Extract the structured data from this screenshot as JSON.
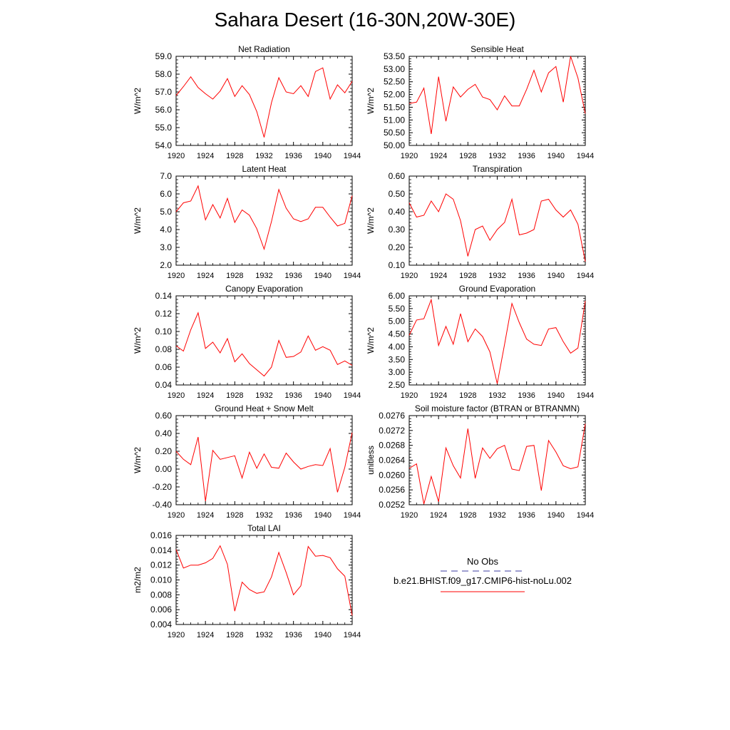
{
  "title": "Sahara Desert (16-30N,20W-30E)",
  "years": [
    1920,
    1921,
    1922,
    1923,
    1924,
    1925,
    1926,
    1927,
    1928,
    1929,
    1930,
    1931,
    1932,
    1933,
    1934,
    1935,
    1936,
    1937,
    1938,
    1939,
    1940,
    1941,
    1942,
    1943,
    1944
  ],
  "colors": {
    "series": "#ff0000",
    "obs": "#3c3ca0",
    "axis": "#000000"
  },
  "chart_data": [
    {
      "type": "line",
      "title": "Net Radiation",
      "ylabel": "W/m^2",
      "ylim": [
        54.0,
        59.0
      ],
      "yticks": [
        54.0,
        55.0,
        56.0,
        57.0,
        58.0,
        59.0
      ],
      "ytick_decimals": 1,
      "xlim": [
        1920,
        1944
      ],
      "xticks": [
        1920,
        1924,
        1928,
        1932,
        1936,
        1940,
        1944
      ],
      "series": [
        {
          "values": [
            56.8,
            57.3,
            57.85,
            57.25,
            56.9,
            56.6,
            57.05,
            57.75,
            56.75,
            57.35,
            56.85,
            55.9,
            54.45,
            56.4,
            57.8,
            57.0,
            56.9,
            57.35,
            56.75,
            58.15,
            58.35,
            56.6,
            57.4,
            56.95,
            57.6
          ]
        }
      ]
    },
    {
      "type": "line",
      "title": "Sensible Heat",
      "ylabel": "W/m^2",
      "ylim": [
        50.0,
        53.5
      ],
      "yticks": [
        50.0,
        50.5,
        51.0,
        51.5,
        52.0,
        52.5,
        53.0,
        53.5
      ],
      "ytick_decimals": 2,
      "xlim": [
        1920,
        1944
      ],
      "xticks": [
        1920,
        1924,
        1928,
        1932,
        1936,
        1940,
        1944
      ],
      "series": [
        {
          "values": [
            51.65,
            51.7,
            52.25,
            50.45,
            52.7,
            50.95,
            52.3,
            51.9,
            52.2,
            52.4,
            51.9,
            51.8,
            51.4,
            51.95,
            51.55,
            51.55,
            52.2,
            52.95,
            52.1,
            52.85,
            53.1,
            51.7,
            53.5,
            52.65,
            51.25
          ]
        }
      ]
    },
    {
      "type": "line",
      "title": "Latent Heat",
      "ylabel": "W/m^2",
      "ylim": [
        2.0,
        7.0
      ],
      "yticks": [
        2.0,
        3.0,
        4.0,
        5.0,
        6.0,
        7.0
      ],
      "ytick_decimals": 1,
      "xlim": [
        1920,
        1944
      ],
      "xticks": [
        1920,
        1924,
        1928,
        1932,
        1936,
        1940,
        1944
      ],
      "series": [
        {
          "values": [
            5.0,
            5.5,
            5.6,
            6.45,
            4.55,
            5.4,
            4.65,
            5.75,
            4.4,
            5.1,
            4.8,
            4.05,
            2.9,
            4.45,
            6.25,
            5.2,
            4.6,
            4.45,
            4.6,
            5.25,
            5.25,
            4.7,
            4.2,
            4.35,
            5.9
          ]
        }
      ]
    },
    {
      "type": "line",
      "title": "Transpiration",
      "ylabel": "W/m^2",
      "ylim": [
        0.1,
        0.6
      ],
      "yticks": [
        0.1,
        0.2,
        0.3,
        0.4,
        0.5,
        0.6
      ],
      "ytick_decimals": 2,
      "xlim": [
        1920,
        1944
      ],
      "xticks": [
        1920,
        1924,
        1928,
        1932,
        1936,
        1940,
        1944
      ],
      "series": [
        {
          "values": [
            0.45,
            0.37,
            0.38,
            0.46,
            0.4,
            0.5,
            0.47,
            0.35,
            0.15,
            0.3,
            0.32,
            0.24,
            0.3,
            0.34,
            0.47,
            0.27,
            0.28,
            0.3,
            0.46,
            0.47,
            0.41,
            0.37,
            0.41,
            0.33,
            0.12
          ]
        }
      ]
    },
    {
      "type": "line",
      "title": "Canopy Evaporation",
      "ylabel": "W/m^2",
      "ylim": [
        0.04,
        0.14
      ],
      "yticks": [
        0.04,
        0.06,
        0.08,
        0.1,
        0.12,
        0.14
      ],
      "ytick_decimals": 2,
      "xlim": [
        1920,
        1944
      ],
      "xticks": [
        1920,
        1924,
        1928,
        1932,
        1936,
        1940,
        1944
      ],
      "series": [
        {
          "values": [
            0.084,
            0.078,
            0.102,
            0.121,
            0.081,
            0.088,
            0.076,
            0.092,
            0.066,
            0.075,
            0.064,
            0.057,
            0.05,
            0.06,
            0.09,
            0.071,
            0.072,
            0.077,
            0.095,
            0.079,
            0.083,
            0.079,
            0.063,
            0.067,
            0.062
          ]
        }
      ]
    },
    {
      "type": "line",
      "title": "Ground Evaporation",
      "ylabel": "W/m^2",
      "ylim": [
        2.5,
        6.0
      ],
      "yticks": [
        2.5,
        3.0,
        3.5,
        4.0,
        4.5,
        5.0,
        5.5,
        6.0
      ],
      "ytick_decimals": 2,
      "xlim": [
        1920,
        1944
      ],
      "xticks": [
        1920,
        1924,
        1928,
        1932,
        1936,
        1940,
        1944
      ],
      "series": [
        {
          "values": [
            4.45,
            5.05,
            5.1,
            5.85,
            4.05,
            4.8,
            4.1,
            5.3,
            4.2,
            4.7,
            4.4,
            3.8,
            2.55,
            4.1,
            5.7,
            4.95,
            4.3,
            4.1,
            4.05,
            4.7,
            4.75,
            4.2,
            3.75,
            3.95,
            5.8
          ]
        }
      ]
    },
    {
      "type": "line",
      "title": "Ground Heat + Snow Melt",
      "ylabel": "W/m^2",
      "ylim": [
        -0.4,
        0.6
      ],
      "yticks": [
        -0.4,
        -0.2,
        0.0,
        0.2,
        0.4,
        0.6
      ],
      "ytick_decimals": 2,
      "xlim": [
        1920,
        1944
      ],
      "xticks": [
        1920,
        1924,
        1928,
        1932,
        1936,
        1940,
        1944
      ],
      "series": [
        {
          "values": [
            0.2,
            0.11,
            0.05,
            0.36,
            -0.36,
            0.21,
            0.11,
            0.13,
            0.15,
            -0.1,
            0.19,
            0.01,
            0.17,
            0.02,
            0.01,
            0.18,
            0.08,
            0.0,
            0.03,
            0.05,
            0.04,
            0.23,
            -0.26,
            0.02,
            0.41
          ]
        }
      ]
    },
    {
      "type": "line",
      "title": "Soil moisture factor (BTRAN or BTRANMN)",
      "ylabel": "unitless",
      "ylim": [
        0.0252,
        0.0276
      ],
      "yticks": [
        0.0252,
        0.0256,
        0.026,
        0.0264,
        0.0268,
        0.0272,
        0.0276
      ],
      "ytick_decimals": 4,
      "xlim": [
        1920,
        1944
      ],
      "xticks": [
        1920,
        1924,
        1928,
        1932,
        1936,
        1940,
        1944
      ],
      "series": [
        {
          "values": [
            0.02618,
            0.0263,
            0.02522,
            0.02596,
            0.02528,
            0.02673,
            0.02625,
            0.02592,
            0.02725,
            0.02591,
            0.02673,
            0.02645,
            0.02671,
            0.0268,
            0.02616,
            0.02612,
            0.02677,
            0.0268,
            0.02558,
            0.02693,
            0.02662,
            0.02625,
            0.02617,
            0.02622,
            0.02738
          ]
        }
      ]
    },
    {
      "type": "line",
      "title": "Total LAI",
      "ylabel": "m2/m2",
      "ylim": [
        0.004,
        0.016
      ],
      "yticks": [
        0.004,
        0.006,
        0.008,
        0.01,
        0.012,
        0.014,
        0.016
      ],
      "ytick_decimals": 3,
      "xlim": [
        1920,
        1944
      ],
      "xticks": [
        1920,
        1924,
        1928,
        1932,
        1936,
        1940,
        1944
      ],
      "series": [
        {
          "values": [
            0.0141,
            0.0116,
            0.012,
            0.012,
            0.0123,
            0.0129,
            0.0146,
            0.0121,
            0.0058,
            0.0097,
            0.0087,
            0.0082,
            0.0084,
            0.0104,
            0.0137,
            0.011,
            0.008,
            0.0092,
            0.0145,
            0.0132,
            0.0133,
            0.013,
            0.0115,
            0.0105,
            0.0052
          ]
        }
      ]
    }
  ],
  "legend": {
    "obs_label": "No Obs",
    "case_label": "b.e21.BHIST.f09_g17.CMIP6-hist-noLu.002"
  }
}
